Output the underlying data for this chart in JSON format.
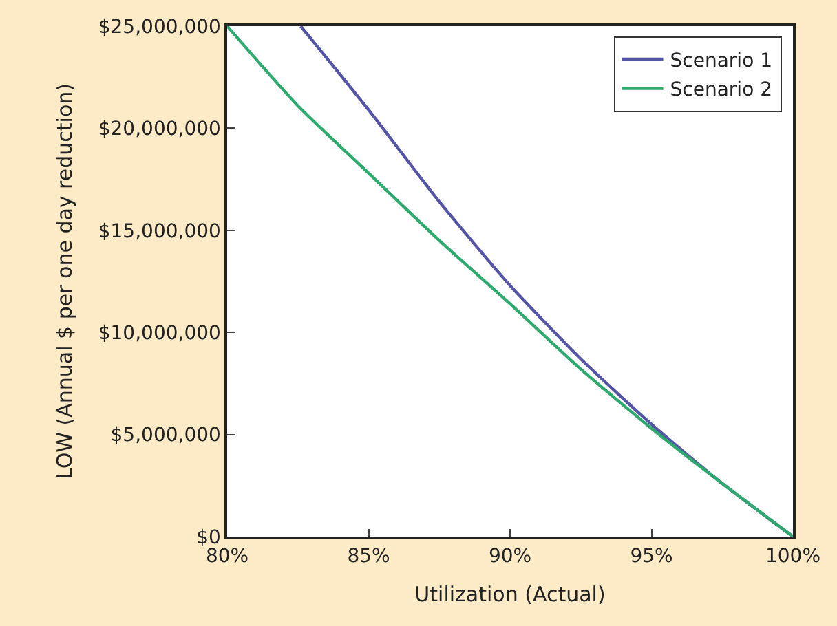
{
  "chart_data": {
    "type": "line",
    "xlabel": "Utilization (Actual)",
    "ylabel": "LOW (Annual $ per one day reduction)",
    "xlim": [
      80,
      100
    ],
    "xticks": [
      {
        "value": 80,
        "label": "80%"
      },
      {
        "value": 85,
        "label": "85%"
      },
      {
        "value": 90,
        "label": "90%"
      },
      {
        "value": 95,
        "label": "95%"
      },
      {
        "value": 100,
        "label": "100%"
      }
    ],
    "ylim": [
      0,
      25000000
    ],
    "yticks": [
      {
        "value": 0,
        "label": "$0"
      },
      {
        "value": 5000000,
        "label": "$5,000,000"
      },
      {
        "value": 10000000,
        "label": "$10,000,000"
      },
      {
        "value": 15000000,
        "label": "$15,000,000"
      },
      {
        "value": 20000000,
        "label": "$20,000,000"
      },
      {
        "value": 25000000,
        "label": "$25,000,000"
      }
    ],
    "legend": "top right",
    "marker": "none",
    "line_style": "solid",
    "series": [
      {
        "name": "Scenario 1",
        "color": "#5555a5",
        "x": [
          82.6,
          85,
          87.5,
          90,
          92.5,
          95,
          97.5,
          100
        ],
        "values": [
          25000000,
          20900000,
          16400000,
          12300000,
          8700000,
          5500000,
          2600000,
          0
        ]
      },
      {
        "name": "Scenario 2",
        "color": "#2eaa6e",
        "x": [
          80,
          82.5,
          85,
          87.5,
          90,
          92.5,
          95,
          97.5,
          100
        ],
        "values": [
          25000000,
          21100000,
          17800000,
          14500000,
          11400000,
          8200000,
          5300000,
          2600000,
          0
        ]
      }
    ]
  }
}
